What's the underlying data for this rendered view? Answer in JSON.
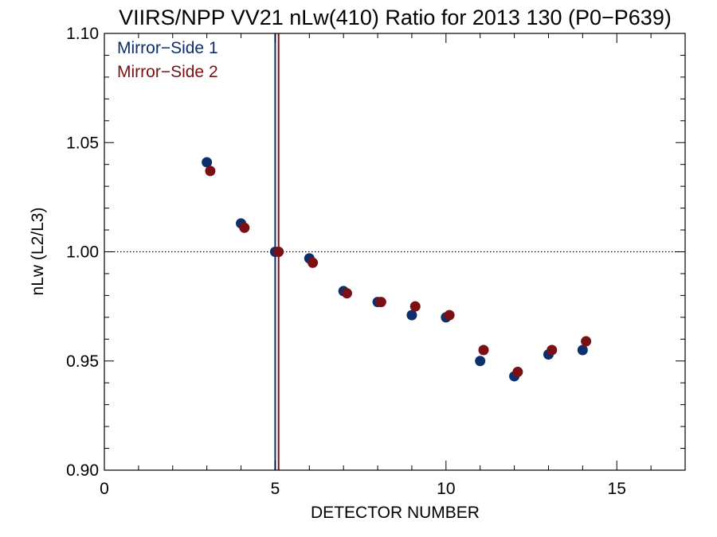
{
  "chart_data": {
    "type": "scatter",
    "title": "VIIRS/NPP VV21 nLw(410) Ratio for 2013 130 (P0−P639)",
    "xlabel": "DETECTOR NUMBER",
    "ylabel": "nLw (L2/L3)",
    "xlim": [
      0,
      17
    ],
    "ylim": [
      0.9,
      1.1
    ],
    "xticks": [
      0,
      5,
      10,
      15
    ],
    "xtick_labels": [
      "0",
      "5",
      "10",
      "15"
    ],
    "yticks": [
      0.9,
      0.95,
      1.0,
      1.05,
      1.1
    ],
    "ytick_labels": [
      "0.90",
      "0.95",
      "1.00",
      "1.05",
      "1.10"
    ],
    "reference_line_y": 1.0,
    "legend_placement": "top-left",
    "series": [
      {
        "name": "Mirror−Side 1",
        "color": "#0d2f6b",
        "x": [
          3,
          4,
          5,
          6,
          7,
          8,
          9,
          10,
          11,
          12,
          13,
          14
        ],
        "y": [
          1.041,
          1.013,
          1.0,
          0.997,
          0.982,
          0.977,
          0.971,
          0.97,
          0.95,
          0.943,
          0.953,
          0.955
        ],
        "reference_x": 5
      },
      {
        "name": "Mirror−Side 2",
        "color": "#7a0f14",
        "x": [
          3.1,
          4.1,
          5.1,
          6.1,
          7.1,
          8.1,
          9.1,
          10.1,
          11.1,
          12.1,
          13.1,
          14.1
        ],
        "y": [
          1.037,
          1.011,
          1.0,
          0.995,
          0.981,
          0.977,
          0.975,
          0.971,
          0.955,
          0.945,
          0.955,
          0.959
        ],
        "reference_x": 5.1
      }
    ]
  }
}
